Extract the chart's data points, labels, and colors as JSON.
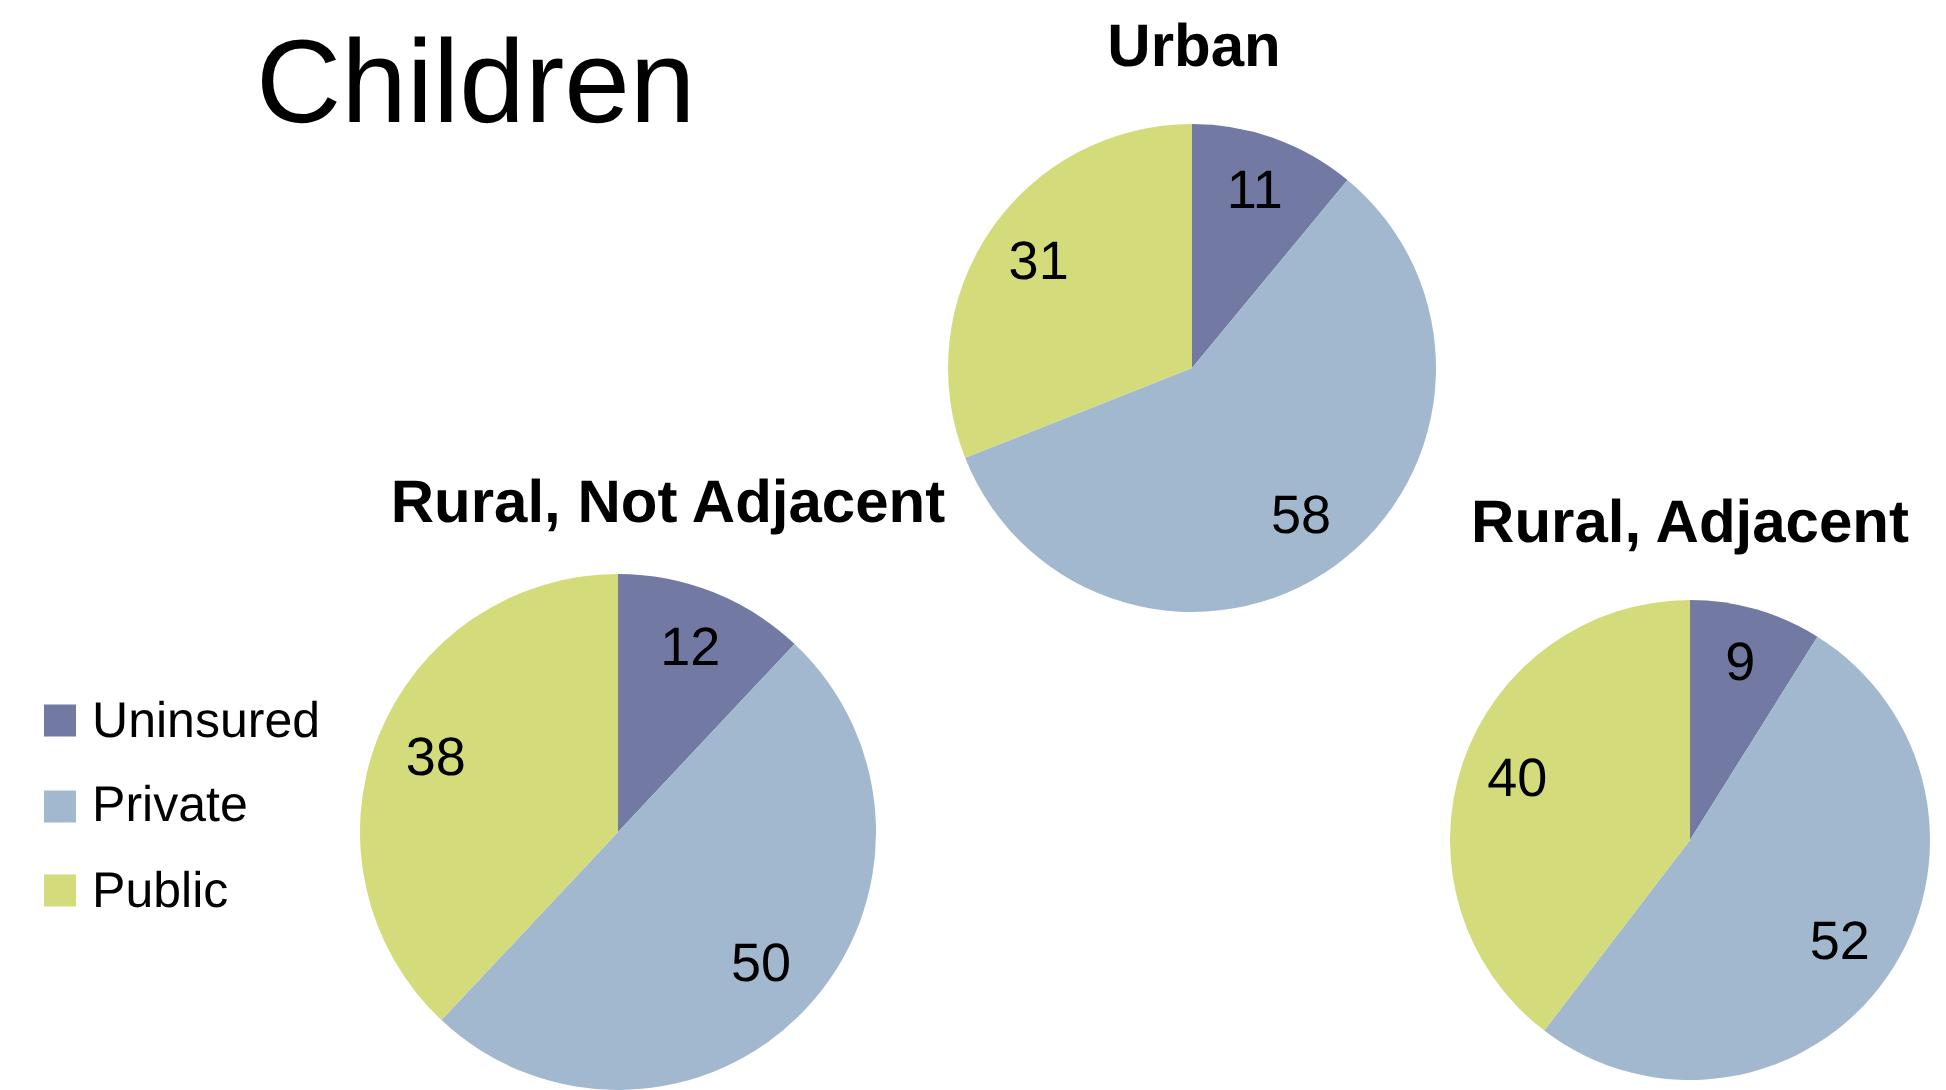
{
  "chart_data": [
    {
      "type": "other",
      "title": "Children"
    },
    {
      "type": "pie",
      "title": "Urban",
      "categories": [
        null,
        null,
        null
      ],
      "values": [
        11,
        58,
        31
      ],
      "colors": [
        "#727aa3",
        "#a1b8cf",
        "#d4db7b"
      ],
      "data_labels": true
    },
    {
      "type": "pie",
      "title": "Rural, Not Adjacent",
      "categories": [
        "Uninsured",
        "Private",
        "Public"
      ],
      "values": [
        12,
        50,
        38
      ],
      "colors": [
        "#727aa3",
        "#a1b8cf",
        "#d4db7b"
      ],
      "data_labels": true,
      "legend": "left"
    },
    {
      "type": "pie",
      "title": "Rural, Adjacent",
      "categories": [
        null,
        null,
        null
      ],
      "values": [
        9,
        52,
        40
      ],
      "colors": [
        "#727aa3",
        "#a1b8cf",
        "#d4db7b"
      ],
      "data_labels": true
    }
  ]
}
